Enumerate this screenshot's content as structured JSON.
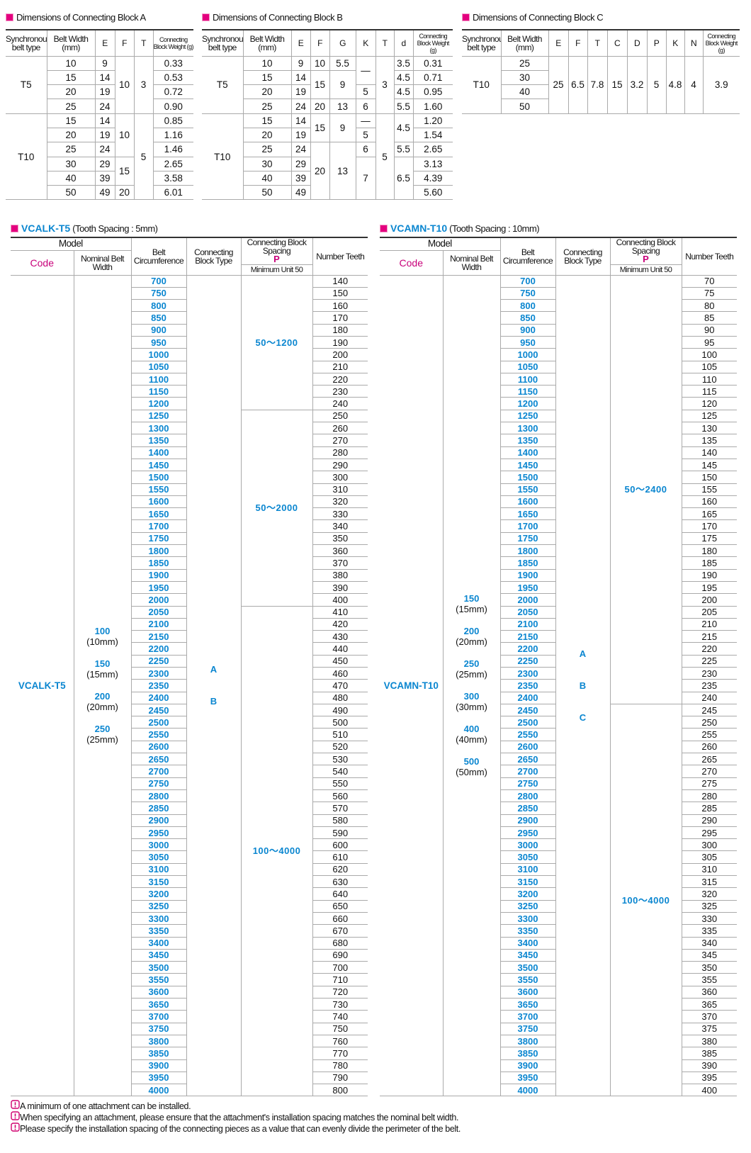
{
  "block_a": {
    "title": "Dimensions of Connecting Block A",
    "headers": [
      "Synchronous belt type",
      "Belt Width (mm)",
      "E",
      "F",
      "T",
      "Connecting Block Weight (g)"
    ],
    "rows": [
      [
        "T5",
        "10",
        "9",
        "10",
        "3",
        "0.33"
      ],
      [
        "15",
        "14",
        "0.53"
      ],
      [
        "20",
        "19",
        "0.72"
      ],
      [
        "25",
        "24",
        "0.90"
      ],
      [
        "T10",
        "15",
        "14",
        "10",
        "5",
        "0.85"
      ],
      [
        "20",
        "19",
        "1.16"
      ],
      [
        "25",
        "24",
        "1.46"
      ],
      [
        "30",
        "29",
        "15",
        "2.65"
      ],
      [
        "40",
        "39",
        "3.58"
      ],
      [
        "50",
        "49",
        "20",
        "6.01"
      ]
    ]
  },
  "block_b": {
    "title": "Dimensions of Connecting Block B",
    "headers": [
      "Synchronous belt type",
      "Belt Width (mm)",
      "E",
      "F",
      "G",
      "K",
      "T",
      "d",
      "Connecting Block Weight (g)"
    ],
    "rows": [
      [
        "T5",
        "10",
        "9",
        "10",
        "5.5",
        "—",
        "3",
        "3.5",
        "0.31"
      ],
      [
        "15",
        "14",
        "15",
        "9",
        "4.5",
        "0.71"
      ],
      [
        "20",
        "19",
        "5",
        "4.5",
        "0.95"
      ],
      [
        "25",
        "24",
        "20",
        "13",
        "6",
        "5.5",
        "1.60"
      ],
      [
        "T10",
        "15",
        "14",
        "15",
        "9",
        "—",
        "5",
        "4.5",
        "1.20"
      ],
      [
        "20",
        "19",
        "5",
        "1.54"
      ],
      [
        "25",
        "24",
        "20",
        "13",
        "6",
        "5.5",
        "2.65"
      ],
      [
        "30",
        "29",
        "7",
        "6.5",
        "3.13"
      ],
      [
        "40",
        "39",
        "4.39"
      ],
      [
        "50",
        "49",
        "5.60"
      ]
    ]
  },
  "block_c": {
    "title": "Dimensions of Connecting Block C",
    "headers": [
      "Synchronous belt type",
      "Belt Width (mm)",
      "E",
      "F",
      "T",
      "C",
      "D",
      "P",
      "K",
      "N",
      "Connecting Block Weight (g)"
    ],
    "rows": [
      [
        "T10",
        "25",
        "25",
        "6.5",
        "7.8",
        "15",
        "3.2",
        "5",
        "4.8",
        "4",
        "3.9"
      ],
      [
        "30"
      ],
      [
        "40"
      ],
      [
        "50"
      ]
    ]
  },
  "vcalk": {
    "title": "VCALK-T5",
    "subtitle": "(Tooth Spacing : 5mm)",
    "headers": {
      "model": "Model",
      "code": "Code",
      "nominal": "Nominal Belt Width",
      "circumference": "Belt Circumference",
      "block_type": "Connecting Block Type",
      "spacing": "Connecting Block Spacing",
      "p": "P",
      "min_unit": "Minimum Unit 50",
      "teeth": "Number Teeth"
    },
    "code": "VCALK-T5",
    "widths": [
      {
        "value": "100",
        "mm": "(10mm)"
      },
      {
        "value": "150",
        "mm": "(15mm)"
      },
      {
        "value": "200",
        "mm": "(20mm)"
      },
      {
        "value": "250",
        "mm": "(25mm)"
      }
    ],
    "block_types": [
      "A",
      "B"
    ],
    "spacings": [
      "50～1200",
      "50～2000",
      "100～4000"
    ],
    "circumference": [
      700,
      750,
      800,
      850,
      900,
      950,
      1000,
      1050,
      1100,
      1150,
      1200,
      1250,
      1300,
      1350,
      1400,
      1450,
      1500,
      1550,
      1600,
      1650,
      1700,
      1750,
      1800,
      1850,
      1900,
      1950,
      2000,
      2050,
      2100,
      2150,
      2200,
      2250,
      2300,
      2350,
      2400,
      2450,
      2500,
      2550,
      2600,
      2650,
      2700,
      2750,
      2800,
      2850,
      2900,
      2950,
      3000,
      3050,
      3100,
      3150,
      3200,
      3250,
      3300,
      3350,
      3400,
      3450,
      3500,
      3550,
      3600,
      3650,
      3700,
      3750,
      3800,
      3850,
      3900,
      3950,
      4000
    ],
    "teeth": [
      140,
      150,
      160,
      170,
      180,
      190,
      200,
      210,
      220,
      230,
      240,
      250,
      260,
      270,
      280,
      290,
      300,
      310,
      320,
      330,
      340,
      350,
      360,
      370,
      380,
      390,
      400,
      410,
      420,
      430,
      440,
      450,
      460,
      470,
      480,
      490,
      500,
      510,
      520,
      530,
      540,
      550,
      560,
      570,
      580,
      590,
      600,
      610,
      620,
      630,
      640,
      650,
      660,
      670,
      680,
      690,
      700,
      710,
      720,
      730,
      740,
      750,
      760,
      770,
      780,
      790,
      800
    ]
  },
  "vcamn": {
    "title": "VCAMN-T10",
    "subtitle": "(Tooth Spacing : 10mm)",
    "headers": {
      "model": "Model",
      "code": "Code",
      "nominal": "Nominal Belt Width",
      "circumference": "Belt Circumference",
      "block_type": "Connecting Block Type",
      "spacing": "Connecting Block Spacing",
      "p": "P",
      "min_unit": "Minimum Unit 50",
      "teeth": "Number Teeth"
    },
    "code": "VCAMN-T10",
    "widths": [
      {
        "value": "150",
        "mm": "(15mm)"
      },
      {
        "value": "200",
        "mm": "(20mm)"
      },
      {
        "value": "250",
        "mm": "(25mm)"
      },
      {
        "value": "300",
        "mm": "(30mm)"
      },
      {
        "value": "400",
        "mm": "(40mm)"
      },
      {
        "value": "500",
        "mm": "(50mm)"
      }
    ],
    "block_types": [
      "A",
      "B",
      "C"
    ],
    "spacings": [
      "50～2400",
      "100～4000"
    ],
    "circumference": [
      700,
      750,
      800,
      850,
      900,
      950,
      1000,
      1050,
      1100,
      1150,
      1200,
      1250,
      1300,
      1350,
      1400,
      1450,
      1500,
      1550,
      1600,
      1650,
      1700,
      1750,
      1800,
      1850,
      1900,
      1950,
      2000,
      2050,
      2100,
      2150,
      2200,
      2250,
      2300,
      2350,
      2400,
      2450,
      2500,
      2550,
      2600,
      2650,
      2700,
      2750,
      2800,
      2850,
      2900,
      2950,
      3000,
      3050,
      3100,
      3150,
      3200,
      3250,
      3300,
      3350,
      3400,
      3450,
      3500,
      3550,
      3600,
      3650,
      3700,
      3750,
      3800,
      3850,
      3900,
      3950,
      4000
    ],
    "teeth": [
      70,
      75,
      80,
      85,
      90,
      95,
      100,
      105,
      110,
      115,
      120,
      125,
      130,
      135,
      140,
      145,
      150,
      155,
      160,
      165,
      170,
      175,
      180,
      185,
      190,
      195,
      200,
      205,
      210,
      215,
      220,
      225,
      230,
      235,
      240,
      245,
      250,
      255,
      260,
      265,
      270,
      275,
      280,
      285,
      290,
      295,
      300,
      305,
      310,
      315,
      320,
      325,
      330,
      335,
      340,
      345,
      350,
      355,
      360,
      365,
      370,
      375,
      380,
      385,
      390,
      395,
      400
    ]
  },
  "notes": [
    "A minimum of one attachment can be installed.",
    "When specifying an attachment, please ensure that the attachment's installation spacing matches the nominal belt width.",
    "Please specify the installation spacing of the connecting pieces as a value that can evenly divide the perimeter of the belt."
  ]
}
